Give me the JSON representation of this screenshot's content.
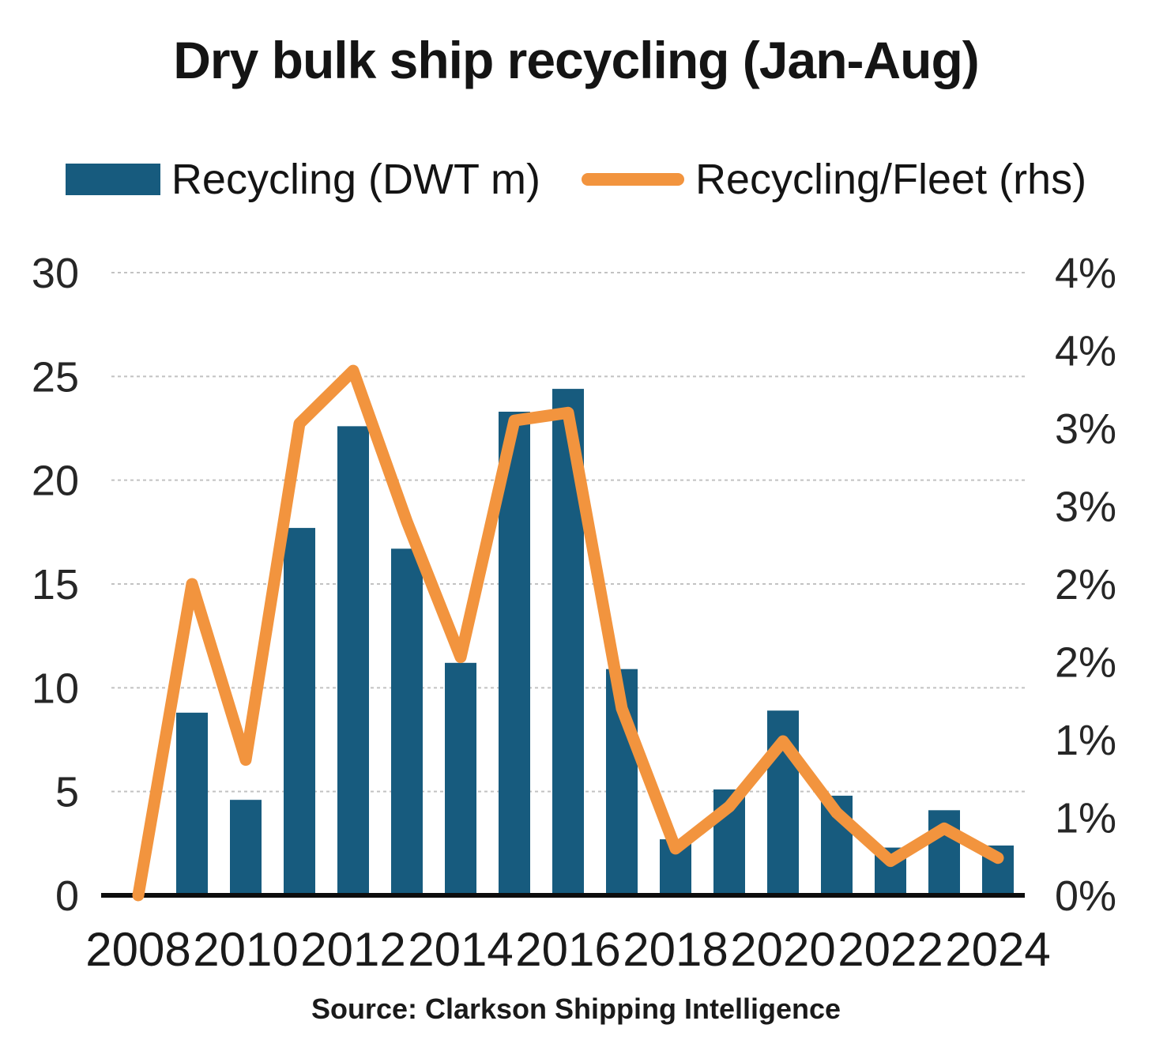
{
  "title": "Dry bulk ship recycling (Jan-Aug)",
  "legend": [
    {
      "label": "Recycling (DWT m)",
      "type": "bar",
      "color": "#175b7e"
    },
    {
      "label": "Recycling/Fleet (rhs)",
      "type": "line",
      "color": "#f2943e"
    }
  ],
  "source": "Source: Clarkson Shipping Intelligence",
  "colors": {
    "bar": "#175b7e",
    "line": "#f2943e",
    "gridline": "#c2c2c2",
    "axis": "#0d0d0d",
    "background": "#ffffff"
  },
  "chart_data": {
    "type": "bar",
    "subtype": "bar+line combo, dual axis",
    "title": "Dry bulk ship recycling (Jan-Aug)",
    "categories": [
      2008,
      2009,
      2010,
      2011,
      2012,
      2013,
      2014,
      2015,
      2016,
      2017,
      2018,
      2019,
      2020,
      2021,
      2022,
      2023,
      2024
    ],
    "series": [
      {
        "name": "Recycling (DWT m)",
        "type": "bar",
        "axis": "left",
        "color": "#175b7e",
        "values": [
          0,
          8.8,
          4.6,
          17.7,
          22.6,
          16.7,
          11.2,
          23.3,
          24.4,
          10.9,
          2.7,
          5.1,
          8.9,
          4.8,
          2.3,
          4.1,
          2.4
        ]
      },
      {
        "name": "Recycling/Fleet (rhs)",
        "type": "line",
        "axis": "right",
        "color": "#f2943e",
        "unit": "%",
        "values": [
          0.0,
          2.0,
          0.87,
          3.03,
          3.37,
          2.4,
          1.53,
          3.05,
          3.1,
          1.2,
          0.3,
          0.57,
          0.99,
          0.53,
          0.22,
          0.43,
          0.24
        ]
      }
    ],
    "left_axis": {
      "min": 0,
      "max": 30,
      "ticks": [
        0,
        5,
        10,
        15,
        20,
        25,
        30
      ]
    },
    "right_axis": {
      "min": 0,
      "max": 4,
      "ticks": [
        4,
        3.5,
        3,
        2.5,
        2,
        1.5,
        1,
        0.5,
        0
      ],
      "tick_labels": [
        "4%",
        "4%",
        "3%",
        "3%",
        "2%",
        "2%",
        "1%",
        "1%",
        "0%"
      ]
    },
    "x_tick_labels": [
      "2008",
      "2010",
      "2012",
      "2014",
      "2016",
      "2018",
      "2020",
      "2022",
      "2024"
    ],
    "gridlines": true,
    "legend_position": "top",
    "xlabel": "",
    "ylabel": ""
  }
}
